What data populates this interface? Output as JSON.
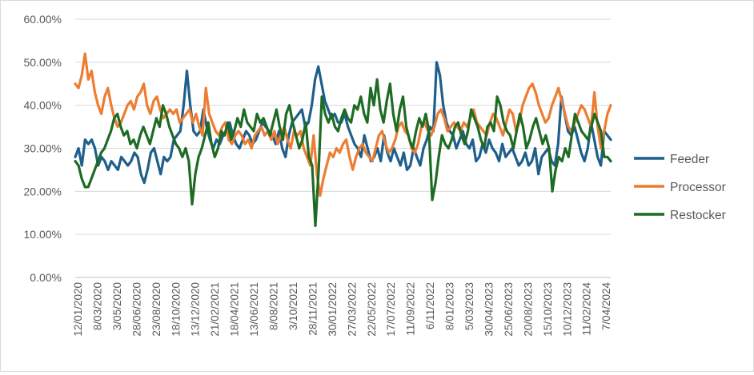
{
  "chart_data": {
    "type": "line",
    "title": "",
    "xlabel": "",
    "ylabel": "",
    "ylim": [
      0,
      0.6
    ],
    "y_ticks": [
      "0.00%",
      "10.00%",
      "20.00%",
      "30.00%",
      "40.00%",
      "50.00%",
      "60.00%"
    ],
    "x_tick_labels": [
      "12/01/2020",
      "8/03/2020",
      "3/05/2020",
      "28/06/2020",
      "23/08/2020",
      "18/10/2020",
      "13/12/2020",
      "21/02/2021",
      "18/04/2021",
      "13/06/2021",
      "8/08/2021",
      "3/10/2021",
      "28/11/2021",
      "30/01/2022",
      "27/03/2022",
      "22/05/2022",
      "17/07/2022",
      "11/09/2022",
      "6/11/2022",
      "8/01/2023",
      "5/03/2023",
      "30/04/2023",
      "25/06/2023",
      "20/08/2023",
      "15/10/2023",
      "10/12/2023",
      "11/02/2024",
      "7/04/2024"
    ],
    "grid": "horizontal",
    "legend_position": "right",
    "series": [
      {
        "name": "Feeder",
        "color": "#1f5f8b",
        "values": [
          0.28,
          0.3,
          0.26,
          0.32,
          0.31,
          0.32,
          0.3,
          0.26,
          0.28,
          0.27,
          0.25,
          0.27,
          0.26,
          0.25,
          0.28,
          0.27,
          0.26,
          0.27,
          0.29,
          0.28,
          0.24,
          0.22,
          0.25,
          0.29,
          0.3,
          0.27,
          0.24,
          0.28,
          0.27,
          0.28,
          0.32,
          0.33,
          0.34,
          0.4,
          0.48,
          0.4,
          0.34,
          0.33,
          0.34,
          0.39,
          0.35,
          0.32,
          0.3,
          0.32,
          0.31,
          0.33,
          0.34,
          0.36,
          0.33,
          0.31,
          0.3,
          0.32,
          0.34,
          0.33,
          0.31,
          0.32,
          0.34,
          0.36,
          0.35,
          0.34,
          0.33,
          0.31,
          0.34,
          0.3,
          0.28,
          0.33,
          0.36,
          0.37,
          0.38,
          0.39,
          0.35,
          0.36,
          0.4,
          0.46,
          0.49,
          0.45,
          0.41,
          0.39,
          0.37,
          0.38,
          0.36,
          0.36,
          0.38,
          0.35,
          0.33,
          0.31,
          0.3,
          0.28,
          0.33,
          0.3,
          0.27,
          0.28,
          0.3,
          0.27,
          0.33,
          0.29,
          0.27,
          0.3,
          0.28,
          0.26,
          0.29,
          0.25,
          0.26,
          0.3,
          0.28,
          0.26,
          0.3,
          0.32,
          0.35,
          0.34,
          0.5,
          0.47,
          0.4,
          0.36,
          0.34,
          0.33,
          0.3,
          0.32,
          0.34,
          0.31,
          0.3,
          0.32,
          0.27,
          0.28,
          0.31,
          0.29,
          0.32,
          0.3,
          0.29,
          0.27,
          0.31,
          0.28,
          0.29,
          0.3,
          0.28,
          0.26,
          0.27,
          0.29,
          0.26,
          0.27,
          0.3,
          0.24,
          0.28,
          0.29,
          0.3,
          0.27,
          0.26,
          0.31,
          0.42,
          0.38,
          0.34,
          0.33,
          0.35,
          0.32,
          0.29,
          0.27,
          0.3,
          0.36,
          0.32,
          0.28,
          0.26,
          0.34,
          0.33,
          0.32
        ]
      },
      {
        "name": "Processor",
        "color": "#ed7d31",
        "values": [
          0.45,
          0.44,
          0.47,
          0.52,
          0.46,
          0.48,
          0.43,
          0.4,
          0.38,
          0.42,
          0.44,
          0.4,
          0.37,
          0.35,
          0.36,
          0.38,
          0.4,
          0.41,
          0.39,
          0.42,
          0.43,
          0.45,
          0.4,
          0.38,
          0.41,
          0.42,
          0.39,
          0.37,
          0.38,
          0.39,
          0.38,
          0.39,
          0.36,
          0.37,
          0.38,
          0.39,
          0.36,
          0.38,
          0.35,
          0.33,
          0.44,
          0.38,
          0.36,
          0.34,
          0.33,
          0.35,
          0.36,
          0.32,
          0.31,
          0.33,
          0.34,
          0.33,
          0.31,
          0.32,
          0.3,
          0.33,
          0.34,
          0.35,
          0.33,
          0.34,
          0.32,
          0.34,
          0.31,
          0.33,
          0.35,
          0.32,
          0.3,
          0.34,
          0.33,
          0.34,
          0.3,
          0.28,
          0.26,
          0.33,
          0.24,
          0.19,
          0.23,
          0.26,
          0.29,
          0.28,
          0.3,
          0.29,
          0.31,
          0.32,
          0.28,
          0.25,
          0.28,
          0.3,
          0.31,
          0.29,
          0.28,
          0.27,
          0.3,
          0.33,
          0.34,
          0.31,
          0.29,
          0.3,
          0.32,
          0.35,
          0.36,
          0.34,
          0.33,
          0.3,
          0.29,
          0.31,
          0.35,
          0.36,
          0.34,
          0.33,
          0.35,
          0.38,
          0.39,
          0.37,
          0.34,
          0.35,
          0.36,
          0.35,
          0.34,
          0.36,
          0.35,
          0.37,
          0.39,
          0.36,
          0.35,
          0.34,
          0.33,
          0.36,
          0.38,
          0.37,
          0.35,
          0.33,
          0.36,
          0.39,
          0.38,
          0.34,
          0.36,
          0.4,
          0.42,
          0.44,
          0.45,
          0.43,
          0.4,
          0.38,
          0.36,
          0.37,
          0.4,
          0.42,
          0.44,
          0.41,
          0.38,
          0.35,
          0.34,
          0.36,
          0.38,
          0.4,
          0.39,
          0.37,
          0.35,
          0.43,
          0.35,
          0.3,
          0.34,
          0.38,
          0.4
        ]
      },
      {
        "name": "Restocker",
        "color": "#1e6b24",
        "values": [
          0.27,
          0.26,
          0.23,
          0.21,
          0.21,
          0.23,
          0.25,
          0.27,
          0.29,
          0.3,
          0.32,
          0.34,
          0.37,
          0.38,
          0.35,
          0.33,
          0.34,
          0.31,
          0.32,
          0.3,
          0.33,
          0.35,
          0.33,
          0.31,
          0.34,
          0.37,
          0.35,
          0.4,
          0.38,
          0.35,
          0.33,
          0.31,
          0.3,
          0.28,
          0.3,
          0.27,
          0.17,
          0.24,
          0.28,
          0.3,
          0.33,
          0.36,
          0.31,
          0.28,
          0.3,
          0.34,
          0.33,
          0.36,
          0.32,
          0.34,
          0.37,
          0.35,
          0.39,
          0.36,
          0.35,
          0.34,
          0.38,
          0.36,
          0.37,
          0.35,
          0.33,
          0.36,
          0.39,
          0.35,
          0.32,
          0.38,
          0.4,
          0.36,
          0.33,
          0.3,
          0.32,
          0.36,
          0.28,
          0.26,
          0.12,
          0.25,
          0.42,
          0.38,
          0.36,
          0.38,
          0.35,
          0.34,
          0.37,
          0.39,
          0.37,
          0.36,
          0.4,
          0.39,
          0.42,
          0.38,
          0.36,
          0.44,
          0.4,
          0.46,
          0.39,
          0.36,
          0.41,
          0.45,
          0.38,
          0.34,
          0.39,
          0.42,
          0.35,
          0.32,
          0.3,
          0.34,
          0.37,
          0.35,
          0.38,
          0.34,
          0.18,
          0.22,
          0.28,
          0.33,
          0.31,
          0.3,
          0.32,
          0.35,
          0.36,
          0.33,
          0.31,
          0.34,
          0.39,
          0.37,
          0.35,
          0.32,
          0.3,
          0.35,
          0.36,
          0.34,
          0.42,
          0.4,
          0.36,
          0.34,
          0.33,
          0.3,
          0.34,
          0.38,
          0.35,
          0.3,
          0.32,
          0.35,
          0.37,
          0.34,
          0.31,
          0.33,
          0.3,
          0.2,
          0.25,
          0.28,
          0.27,
          0.3,
          0.28,
          0.33,
          0.38,
          0.36,
          0.34,
          0.33,
          0.32,
          0.35,
          0.38,
          0.36,
          0.34,
          0.28,
          0.28,
          0.27
        ]
      }
    ]
  }
}
